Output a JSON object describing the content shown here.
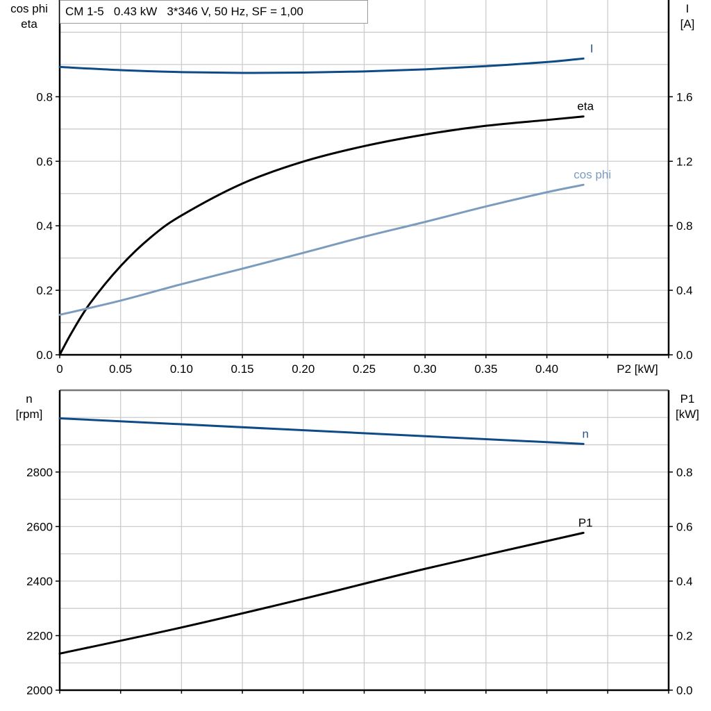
{
  "title": "CM 1-5   0.43 kW   3*346 V, 50 Hz, SF = 1,00",
  "colors": {
    "I": "#0e4a86",
    "eta": "#000000",
    "cos_phi": "#7a9dbf",
    "n": "#0e4a86",
    "P1": "#000000",
    "grid": "#cccccc"
  },
  "chart_data": [
    {
      "type": "line",
      "xlabel": "P2 [kW]",
      "xlim": [
        0,
        0.5
      ],
      "xticks": [
        "0",
        "0.05",
        "0.10",
        "0.15",
        "0.20",
        "0.25",
        "0.30",
        "0.35",
        "0.40"
      ],
      "xtick_values": [
        0,
        0.05,
        0.1,
        0.15,
        0.2,
        0.25,
        0.3,
        0.35,
        0.4
      ],
      "ylabel_left": [
        "cos phi",
        "eta"
      ],
      "ylim_left": [
        0,
        1.1
      ],
      "yticks_left": [
        "0.0",
        "0.2",
        "0.4",
        "0.6",
        "0.8"
      ],
      "ylabel_right": [
        "I",
        "[A]"
      ],
      "ylim_right": [
        0,
        2.2
      ],
      "yticks_right": [
        "0.0",
        "0.4",
        "0.8",
        "1.2",
        "1.6"
      ],
      "grid": true,
      "series": [
        {
          "name": "I",
          "axis": "right",
          "x": [
            0,
            0.05,
            0.1,
            0.15,
            0.2,
            0.25,
            0.3,
            0.35,
            0.4,
            0.43
          ],
          "y": [
            1.785,
            1.765,
            1.753,
            1.748,
            1.75,
            1.757,
            1.77,
            1.79,
            1.815,
            1.837
          ]
        },
        {
          "name": "eta",
          "axis": "left",
          "x": [
            0,
            0.01,
            0.025,
            0.05,
            0.075,
            0.1,
            0.15,
            0.2,
            0.25,
            0.3,
            0.35,
            0.4,
            0.43
          ],
          "y": [
            0,
            0.07,
            0.16,
            0.275,
            0.365,
            0.432,
            0.531,
            0.599,
            0.647,
            0.683,
            0.71,
            0.728,
            0.739
          ]
        },
        {
          "name": "cos phi",
          "axis": "left",
          "x": [
            0,
            0.05,
            0.1,
            0.15,
            0.2,
            0.25,
            0.3,
            0.35,
            0.4,
            0.43
          ],
          "y": [
            0.124,
            0.168,
            0.219,
            0.267,
            0.316,
            0.366,
            0.412,
            0.46,
            0.504,
            0.527
          ]
        }
      ]
    },
    {
      "type": "line",
      "xlim": [
        0,
        0.5
      ],
      "ylabel_left": [
        "n",
        "[rpm]"
      ],
      "ylim_left": [
        2000,
        3100
      ],
      "yticks_left": [
        "2000",
        "2200",
        "2400",
        "2600",
        "2800"
      ],
      "ylabel_right": [
        "P1",
        "[kW]"
      ],
      "ylim_right": [
        0,
        1.1
      ],
      "yticks_right": [
        "0.0",
        "0.2",
        "0.4",
        "0.6",
        "0.8"
      ],
      "grid": true,
      "series": [
        {
          "name": "n",
          "axis": "left",
          "x": [
            0,
            0.43
          ],
          "y": [
            2997,
            2903
          ]
        },
        {
          "name": "P1",
          "axis": "right",
          "x": [
            0,
            0.1,
            0.2,
            0.3,
            0.43
          ],
          "y": [
            0.134,
            0.23,
            0.335,
            0.445,
            0.577
          ]
        }
      ]
    }
  ]
}
